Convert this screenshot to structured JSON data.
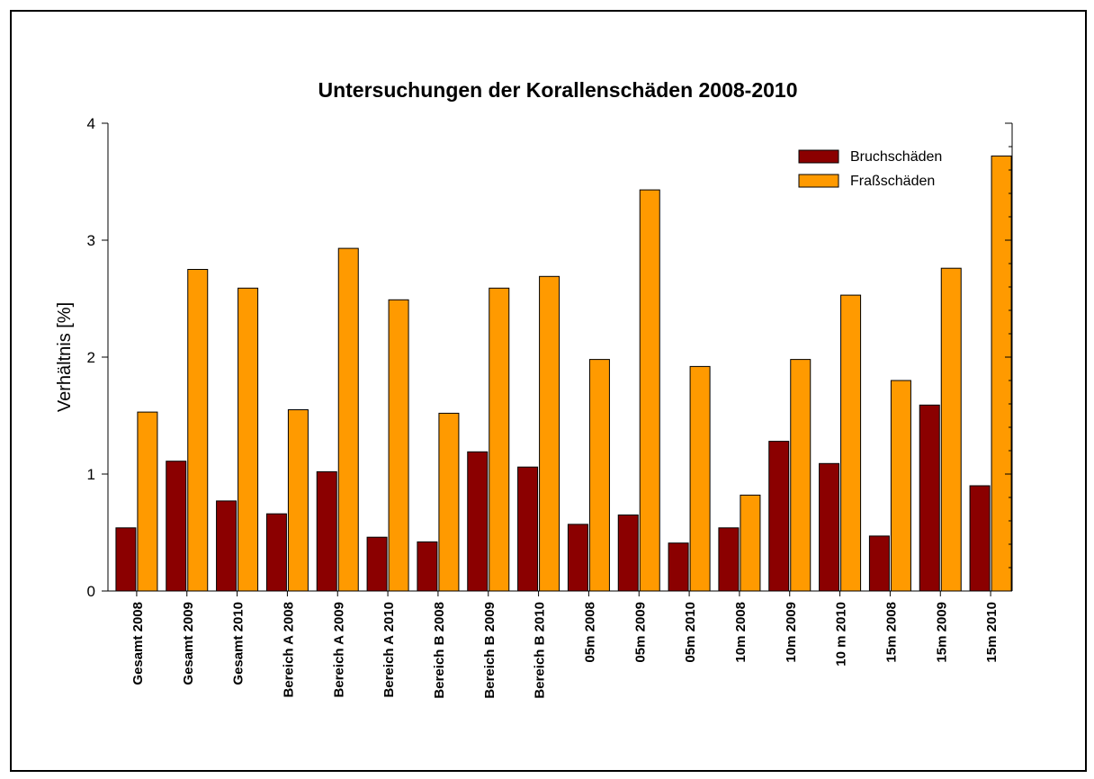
{
  "chart_data": {
    "type": "bar",
    "title": "Untersuchungen der Korallenschäden 2008-2010",
    "y_label": "Verhältnis [%]",
    "categories": [
      "Gesamt 2008",
      "Gesamt 2009",
      "Gesamt 2010",
      "Bereich A 2008",
      "Bereich A 2009",
      "Bereich A 2010",
      "Bereich B 2008",
      "Bereich B 2009",
      "Bereich B 2010",
      "05m 2008",
      "05m 2009",
      "05m 2010",
      "10m 2008",
      "10m 2009",
      "10 m 2010",
      "15m 2008",
      "15m 2009",
      "15m 2010"
    ],
    "series": [
      {
        "name": "Bruchschäden",
        "color": "#8b0000",
        "values": [
          0.54,
          1.11,
          0.77,
          0.66,
          1.02,
          0.46,
          0.42,
          1.19,
          1.06,
          0.57,
          0.65,
          0.41,
          0.54,
          1.28,
          1.09,
          0.47,
          1.59,
          0.9
        ]
      },
      {
        "name": "Fraßschäden",
        "color": "#ff9a00",
        "values": [
          1.53,
          2.75,
          2.59,
          1.55,
          2.93,
          2.49,
          1.52,
          2.59,
          2.69,
          1.98,
          3.43,
          1.92,
          0.82,
          1.98,
          2.53,
          1.8,
          2.76,
          3.72
        ]
      }
    ],
    "ylim": [
      0,
      4
    ],
    "yticks": [
      0,
      1,
      2,
      3,
      4
    ],
    "yminorticks": [
      0.2,
      0.4,
      0.6,
      0.8,
      1.2,
      1.4,
      1.6,
      1.8,
      2.2,
      2.4,
      2.6,
      2.8,
      3.2,
      3.4,
      3.6,
      3.8
    ],
    "legend": "upper right",
    "grid": false
  }
}
